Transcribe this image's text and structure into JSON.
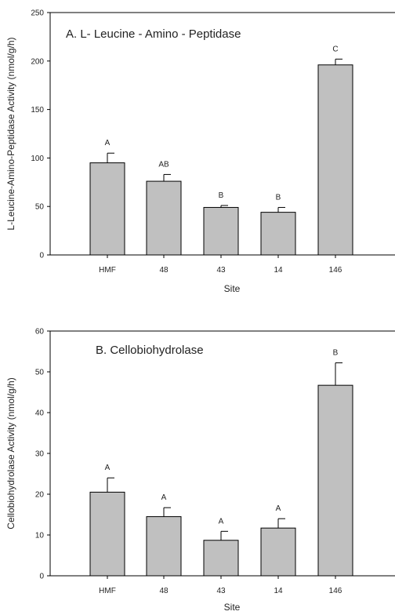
{
  "chart_data": [
    {
      "type": "bar",
      "title": "A.  L- Leucine - Amino - Peptidase",
      "xlabel": "Site",
      "ylabel": "L-Leucine-Amino-Peptidase Activity (nmol/g/h)",
      "categories": [
        "HMF",
        "48",
        "43",
        "14",
        "146"
      ],
      "values": [
        95,
        76,
        49,
        44,
        196
      ],
      "errors": [
        10,
        7,
        2,
        5,
        6
      ],
      "group_labels": [
        "A",
        "AB",
        "B",
        "B",
        "C"
      ],
      "ylim": [
        0,
        250
      ],
      "yticks": [
        0,
        50,
        100,
        150,
        200,
        250
      ],
      "bar_color": "#c0c0c0"
    },
    {
      "type": "bar",
      "title": "B. Cellobiohydrolase",
      "xlabel": "Site",
      "ylabel": "Cellobiohydrolase Activity (nmol/g/h)",
      "categories": [
        "HMF",
        "48",
        "43",
        "14",
        "146"
      ],
      "values": [
        20.5,
        14.5,
        8.7,
        11.7,
        46.7
      ],
      "errors": [
        3.5,
        2.2,
        2.2,
        2.3,
        5.5
      ],
      "group_labels": [
        "A",
        "A",
        "A",
        "A",
        "B"
      ],
      "ylim": [
        0,
        60
      ],
      "yticks": [
        0,
        10,
        20,
        30,
        40,
        50,
        60
      ],
      "bar_color": "#c0c0c0"
    }
  ]
}
